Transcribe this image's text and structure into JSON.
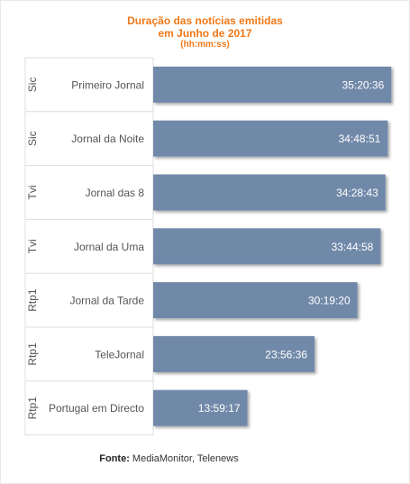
{
  "title": {
    "line1": "Duração das notícias emitidas",
    "line2": "em Junho de 2017",
    "line3": "(hh:mm:ss)"
  },
  "source": {
    "label": "Fonte:",
    "text": "MediaMonitor, Telenews"
  },
  "colors": {
    "bar": "#7189a9",
    "title": "#f07818",
    "bar_label": "#ffffff",
    "axis_text": "#555555",
    "grid": "#dddddd"
  },
  "chart_data": {
    "type": "bar",
    "orientation": "horizontal",
    "value_format": "hh:mm:ss",
    "groups": [
      "Sic",
      "Sic",
      "Tvi",
      "Tvi",
      "Rtp1",
      "Rtp1",
      "Rtp1"
    ],
    "categories": [
      "Primeiro Jornal",
      "Jornal da Noite",
      "Jornal das 8",
      "Jornal da Uma",
      "Jornal da Tarde",
      "TeleJornal",
      "Portugal em Directo"
    ],
    "value_labels": [
      "35:20:36",
      "34:48:51",
      "34:28:43",
      "33:44:58",
      "30:19:20",
      "23:56:36",
      "13:59:17"
    ],
    "values_seconds": [
      127236,
      125331,
      124123,
      121498,
      109160,
      86196,
      50357
    ],
    "xlim_seconds": [
      0,
      130000
    ],
    "grid": false,
    "legend": "none"
  }
}
